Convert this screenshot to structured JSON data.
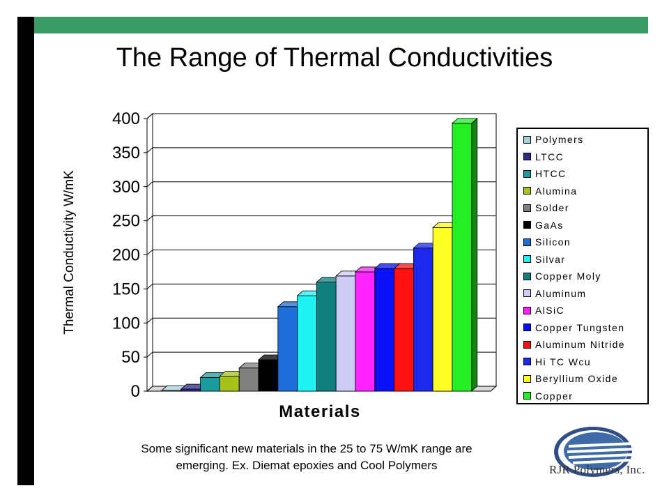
{
  "slide": {
    "title": "The Range of Thermal Conductivities",
    "caption_line1": "Some significant new materials in the 25 to 75 W/mK range are",
    "caption_line2": "emerging.  Ex. Diemat epoxies and Cool Polymers",
    "logo_text": "RJR Polymers, Inc.",
    "colors": {
      "left_bar": "#000000",
      "top_bar": "#3a9a63"
    }
  },
  "chart_data": {
    "type": "bar",
    "title": "",
    "xlabel": "Materials",
    "ylabel": "Thermal Conductivity W/mK",
    "ylim": [
      0,
      400
    ],
    "yticks": [
      0,
      50,
      100,
      150,
      200,
      250,
      300,
      350,
      400
    ],
    "grid": true,
    "legend_position": "right",
    "style": "3d",
    "categories": [
      "Polymers",
      "LTCC",
      "HTCC",
      "Alumina",
      "Solder",
      "GaAs",
      "Silicon",
      "Silvar",
      "Copper Moly",
      "Aluminum",
      "AlSiC",
      "Copper Tungsten",
      "Aluminum Nitride",
      "Hi TC Wcu",
      "Beryllium Oxide",
      "Copper"
    ],
    "values": [
      1,
      3,
      20,
      22,
      34,
      46,
      124,
      140,
      160,
      169,
      175,
      180,
      180,
      210,
      240,
      393
    ],
    "colors": [
      "#a6d0d8",
      "#2b2b8c",
      "#1a9c9c",
      "#a9c21a",
      "#808080",
      "#000000",
      "#1e6fdc",
      "#1ff2f2",
      "#118080",
      "#ccccf5",
      "#ff22ff",
      "#0a10f5",
      "#ff1010",
      "#1a28f0",
      "#ffff22",
      "#22f022"
    ]
  }
}
